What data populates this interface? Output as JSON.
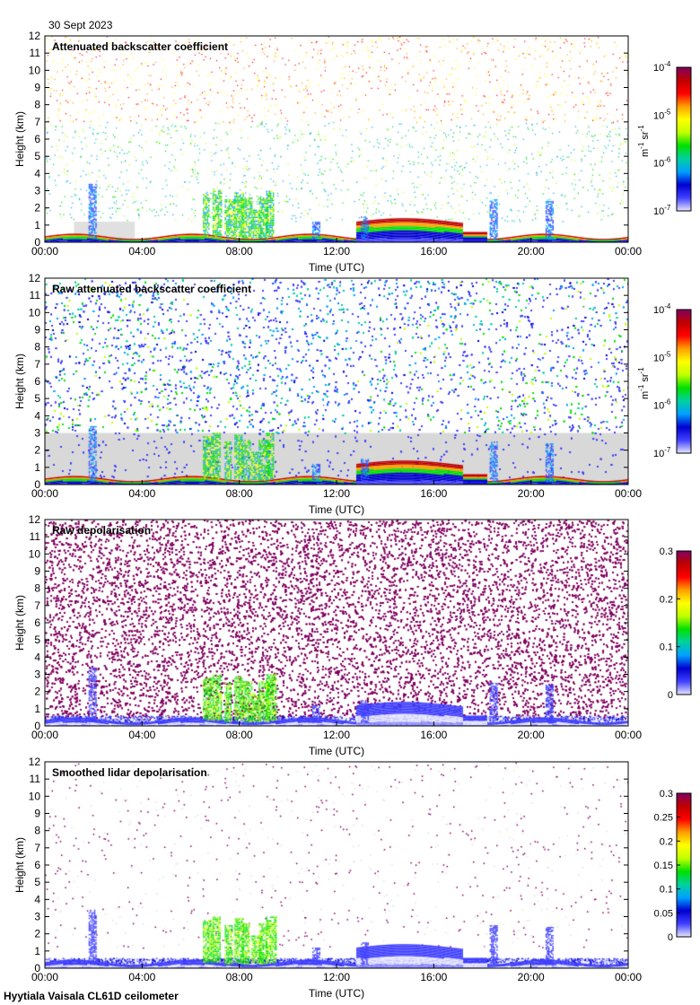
{
  "date": "30 Sept 2023",
  "footer": "Hyytiala Vaisala CL61D ceilometer",
  "colors": {
    "rainbow": [
      "#e6e6ff",
      "#4040ff",
      "#0000d0",
      "#00a0ff",
      "#00d0a0",
      "#00e000",
      "#c0ff00",
      "#ffff00",
      "#ffa000",
      "#ff0000",
      "#c00000",
      "#800060"
    ],
    "depol_high": "#800060",
    "background_gray": "#d8d8d8"
  },
  "chart_data": [
    {
      "type": "heatmap",
      "title": "Attenuated backscatter coefficient",
      "xlabel": "Time (UTC)",
      "ylabel": "Height (km)",
      "x_ticks": [
        "00:00",
        "04:00",
        "08:00",
        "12:00",
        "16:00",
        "20:00",
        "00:00"
      ],
      "xlim_hours": [
        0,
        24
      ],
      "ylim_km": [
        0,
        12
      ],
      "y_ticks": [
        "0",
        "1",
        "2",
        "3",
        "4",
        "5",
        "6",
        "7",
        "8",
        "9",
        "10",
        "11",
        "12"
      ],
      "colorbar": {
        "scale": "log",
        "range": [
          1e-07,
          0.0001
        ],
        "ticks": [
          "10",
          "10",
          "10",
          "10"
        ],
        "tick_exp": [
          "-7",
          "-6",
          "-5",
          "-4"
        ],
        "unit": "m",
        "unit_exp1": "-1",
        "unit2": "sr",
        "unit_exp2": "-1"
      },
      "mode": "cleaned"
    },
    {
      "type": "heatmap",
      "title": "Raw attenuated backscatter coefficient",
      "xlabel": "Time (UTC)",
      "ylabel": "Height (km)",
      "x_ticks": [
        "00:00",
        "04:00",
        "08:00",
        "12:00",
        "16:00",
        "20:00",
        "00:00"
      ],
      "xlim_hours": [
        0,
        24
      ],
      "ylim_km": [
        0,
        12
      ],
      "y_ticks": [
        "0",
        "1",
        "2",
        "3",
        "4",
        "5",
        "6",
        "7",
        "8",
        "9",
        "10",
        "11",
        "12"
      ],
      "colorbar": {
        "scale": "log",
        "range": [
          1e-07,
          0.0001
        ],
        "ticks": [
          "10",
          "10",
          "10",
          "10"
        ],
        "tick_exp": [
          "-7",
          "-6",
          "-5",
          "-4"
        ],
        "unit": "m",
        "unit_exp1": "-1",
        "unit2": "sr",
        "unit_exp2": "-1"
      },
      "mode": "raw"
    },
    {
      "type": "heatmap",
      "title": "Raw depolarisation",
      "xlabel": "Time (UTC)",
      "ylabel": "Height (km)",
      "x_ticks": [
        "00:00",
        "04:00",
        "08:00",
        "12:00",
        "16:00",
        "20:00",
        "00:00"
      ],
      "xlim_hours": [
        0,
        24
      ],
      "ylim_km": [
        0,
        12
      ],
      "y_ticks": [
        "0",
        "1",
        "2",
        "3",
        "4",
        "5",
        "6",
        "7",
        "8",
        "9",
        "10",
        "11",
        "12"
      ],
      "colorbar": {
        "scale": "linear",
        "range": [
          0,
          0.3
        ],
        "ticks": [
          "0",
          "0.1",
          "0.2",
          "0.3"
        ]
      },
      "mode": "depol_raw"
    },
    {
      "type": "heatmap",
      "title": "Smoothed lidar depolarisation",
      "xlabel": "Time (UTC)",
      "ylabel": "Height (km)",
      "x_ticks": [
        "00:00",
        "04:00",
        "08:00",
        "12:00",
        "16:00",
        "20:00",
        "00:00"
      ],
      "xlim_hours": [
        0,
        24
      ],
      "ylim_km": [
        0,
        12
      ],
      "y_ticks": [
        "0",
        "1",
        "2",
        "3",
        "4",
        "5",
        "6",
        "7",
        "8",
        "9",
        "10",
        "11",
        "12"
      ],
      "colorbar": {
        "scale": "linear",
        "range": [
          0,
          0.3
        ],
        "ticks": [
          "0",
          "0.05",
          "0.1",
          "0.15",
          "0.2",
          "0.25",
          "0.3"
        ]
      },
      "mode": "depol_smooth"
    }
  ]
}
